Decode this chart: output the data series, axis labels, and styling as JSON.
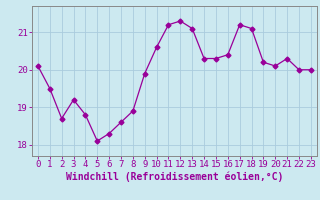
{
  "x": [
    0,
    1,
    2,
    3,
    4,
    5,
    6,
    7,
    8,
    9,
    10,
    11,
    12,
    13,
    14,
    15,
    16,
    17,
    18,
    19,
    20,
    21,
    22,
    23
  ],
  "y": [
    20.1,
    19.5,
    18.7,
    19.2,
    18.8,
    18.1,
    18.3,
    18.6,
    18.9,
    19.9,
    20.6,
    21.2,
    21.3,
    21.1,
    20.3,
    20.3,
    20.4,
    21.2,
    21.1,
    20.2,
    20.1,
    20.3,
    20.0,
    20.0
  ],
  "line_color": "#990099",
  "marker": "D",
  "marker_size": 2.5,
  "bg_color": "#cce9f0",
  "grid_color": "#aaccdd",
  "xlabel": "Windchill (Refroidissement éolien,°C)",
  "ylim": [
    17.7,
    21.7
  ],
  "xlim": [
    -0.5,
    23.5
  ],
  "yticks": [
    18,
    19,
    20,
    21
  ],
  "xtick_labels": [
    "0",
    "1",
    "2",
    "3",
    "4",
    "5",
    "6",
    "7",
    "8",
    "9",
    "10",
    "11",
    "12",
    "13",
    "14",
    "15",
    "16",
    "17",
    "18",
    "19",
    "20",
    "21",
    "22",
    "23"
  ],
  "label_color": "#990099",
  "axis_color": "#888888",
  "tick_fontsize": 6.5,
  "xlabel_fontsize": 7.0
}
